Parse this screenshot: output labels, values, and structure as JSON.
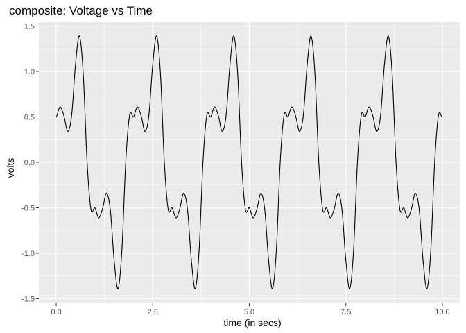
{
  "chart_data": {
    "type": "line",
    "title": "composite: Voltage vs Time",
    "xlabel": "time (in secs)",
    "ylabel": "volts",
    "xlim": [
      0,
      10
    ],
    "ylim": [
      -1.5,
      1.5
    ],
    "xticks": [
      0.0,
      2.5,
      5.0,
      7.5,
      10.0
    ],
    "xtick_labels": [
      "0.0",
      "2.5",
      "5.0",
      "7.5",
      "10.0"
    ],
    "yticks": [
      -1.5,
      -1.0,
      -0.5,
      0.0,
      0.5,
      1.0,
      1.5
    ],
    "ytick_labels": [
      "-1.5",
      "-1.0",
      "-0.5",
      "0.0",
      "0.5",
      "1.0",
      "1.5"
    ],
    "grid": true,
    "legend": "none",
    "series": [
      {
        "color": "#000000",
        "x": [
          0.0,
          0.1,
          0.2,
          0.3,
          0.4,
          0.5,
          0.6,
          0.7,
          0.8,
          0.9,
          1.0,
          1.1,
          1.2,
          1.3,
          1.4,
          1.5,
          1.6,
          1.7,
          1.8,
          1.9,
          2.0
        ],
        "y": [
          0.5,
          0.61,
          0.51,
          0.34,
          0.52,
          1.08,
          1.39,
          0.97,
          0.0,
          -0.52,
          -0.5,
          -0.61,
          -0.51,
          -0.34,
          -0.52,
          -1.08,
          -1.39,
          -0.97,
          0.0,
          0.52,
          0.5
        ],
        "period": 2.0
      }
    ],
    "panel_background": "#ebebeb",
    "grid_color": "#ffffff"
  }
}
